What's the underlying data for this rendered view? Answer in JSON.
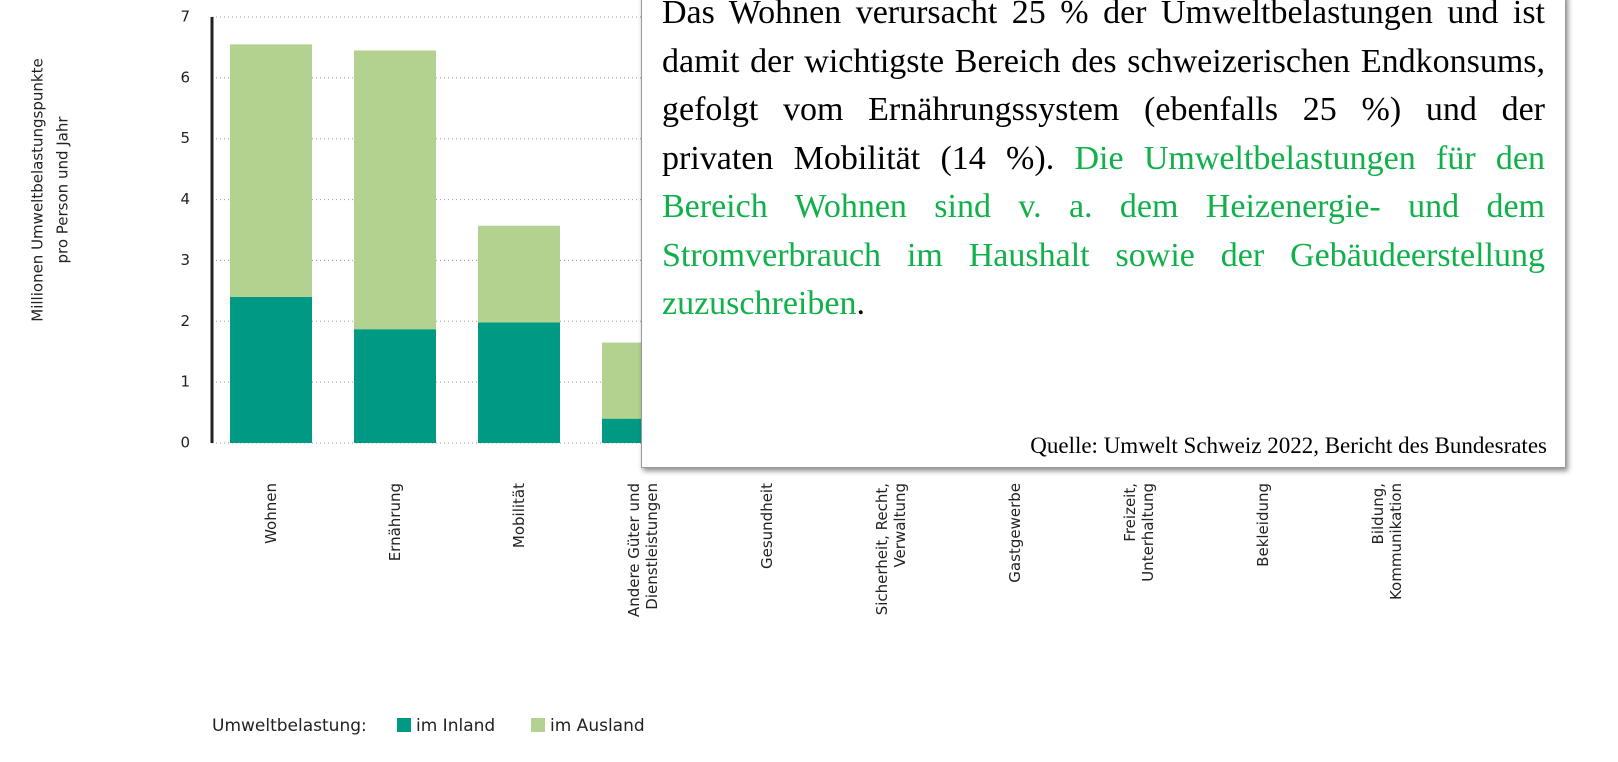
{
  "chart_data": {
    "type": "stacked_bar",
    "y_label": [
      "Millionen Umweltbelastungspunkte",
      "pro Person und Jahr"
    ],
    "categories": [
      "Wohnen",
      "Ernährung",
      "Mobilität",
      "Andere Güter und\nDienstleistungen",
      "Gesundheit",
      "Sicherheit, Recht,\nVerwaltung",
      "Gastgewerbe",
      "Freizeit,\nUnterhaltung",
      "Bekleidung",
      "Bildung,\nKommunikation"
    ],
    "series": [
      {
        "name": "im Inland",
        "color": "#009a84",
        "values": [
          2.4,
          1.87,
          1.98,
          0.4,
          null,
          null,
          null,
          null,
          null,
          null
        ]
      },
      {
        "name": "im Ausland",
        "color": "#b3d18f",
        "values": [
          4.15,
          4.58,
          1.59,
          1.25,
          null,
          null,
          null,
          null,
          null,
          null
        ]
      }
    ],
    "legend_title": "Umweltbelastung:",
    "ylim": [
      0,
      7
    ],
    "yticks": [
      0,
      1,
      2,
      3,
      4,
      5,
      6,
      7
    ],
    "grid": true
  },
  "overlay": {
    "text": "Das Wohnen verursacht 25 % der Umweltbelastungen und ist damit der wichtigste Bereich des schweizerischen Endkonsums, gefolgt vom Ernährungssystem (ebenfalls 25 %) und der privaten Mobilität (14 %).",
    "highlight": "Die Umweltbelastungen für den Bereich Wohnen sind v. a. dem Heizenergie- und dem Stromverbrauch im Haushalt sowie der Gebäudeerstellung zuzuschreiben",
    "end": ".",
    "source": "Quelle: Umwelt Schweiz 2022, Bericht des Bundesrates"
  }
}
